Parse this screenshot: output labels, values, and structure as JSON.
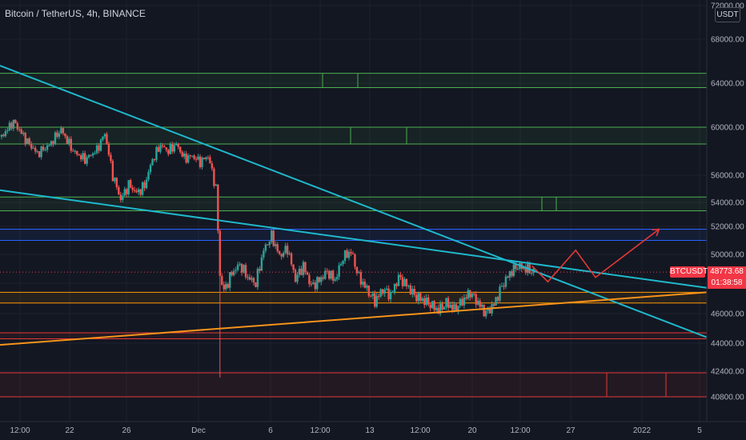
{
  "header": {
    "title": "Bitcoin / TetherUS, 4h, BINANCE"
  },
  "axis": {
    "unit": "USDT"
  },
  "price_tag": {
    "symbol": "BTCUSDT",
    "price": "48773.68",
    "countdown": "01:38:58"
  },
  "colors": {
    "background": "#131722",
    "up": "#26a69a",
    "down": "#ef5350",
    "trendline": "#1fb8cc",
    "support_line": "#f7931a",
    "green_zone": "#4caf50",
    "blue_zone": "#2962ff",
    "orange_zone": "#ff9800",
    "red_zone": "#e53935",
    "projection": "#e53935"
  },
  "chart_data": {
    "type": "candlestick",
    "title": "Bitcoin / TetherUS, 4h, BINANCE",
    "y_unit": "USDT",
    "y_ticks": [
      "72000.00",
      "68000.00",
      "64000.00",
      "60000.00",
      "56000.00",
      "54000.00",
      "52000.00",
      "50000.00",
      "48000.00",
      "46000.00",
      "44000.00",
      "42400.00",
      "40800.00"
    ],
    "x_ticks": [
      "12:00",
      "22",
      "26",
      "Dec",
      "6",
      "12:00",
      "13",
      "12:00",
      "20",
      "12:00",
      "27",
      "2022",
      "5"
    ],
    "last_price": 48773.68,
    "price_path": [
      [
        0,
        59200
      ],
      [
        3,
        60500
      ],
      [
        6,
        59000
      ],
      [
        9,
        57800
      ],
      [
        12,
        58500
      ],
      [
        15,
        59800
      ],
      [
        18,
        58000
      ],
      [
        21,
        57300
      ],
      [
        24,
        58100
      ],
      [
        26,
        59500
      ],
      [
        28,
        56000
      ],
      [
        30,
        54200
      ],
      [
        32,
        55300
      ],
      [
        34,
        54700
      ],
      [
        36,
        55200
      ],
      [
        38,
        57300
      ],
      [
        40,
        58500
      ],
      [
        42,
        58000
      ],
      [
        44,
        58600
      ],
      [
        46,
        57400
      ],
      [
        48,
        57600
      ],
      [
        50,
        57100
      ],
      [
        52,
        57600
      ],
      [
        54,
        55000
      ],
      [
        55,
        48500
      ],
      [
        56,
        47500
      ],
      [
        58,
        48700
      ],
      [
        60,
        49300
      ],
      [
        62,
        48400
      ],
      [
        64,
        48000
      ],
      [
        66,
        50300
      ],
      [
        68,
        51300
      ],
      [
        70,
        49900
      ],
      [
        72,
        50400
      ],
      [
        74,
        48300
      ],
      [
        76,
        49200
      ],
      [
        78,
        47800
      ],
      [
        80,
        48200
      ],
      [
        82,
        48800
      ],
      [
        84,
        48200
      ],
      [
        86,
        49800
      ],
      [
        88,
        50200
      ],
      [
        90,
        48400
      ],
      [
        92,
        47600
      ],
      [
        94,
        46800
      ],
      [
        96,
        47600
      ],
      [
        98,
        47200
      ],
      [
        100,
        48400
      ],
      [
        102,
        47900
      ],
      [
        104,
        47200
      ],
      [
        106,
        46900
      ],
      [
        108,
        46600
      ],
      [
        110,
        46200
      ],
      [
        112,
        46700
      ],
      [
        114,
        46300
      ],
      [
        116,
        46800
      ],
      [
        118,
        47400
      ],
      [
        120,
        46700
      ],
      [
        122,
        46000
      ],
      [
        124,
        46600
      ],
      [
        126,
        47800
      ],
      [
        128,
        48700
      ],
      [
        130,
        49200
      ],
      [
        132,
        49000
      ],
      [
        134,
        48770
      ]
    ],
    "wick_extremes": [
      {
        "x": 55,
        "low": 42000
      },
      {
        "x": 68,
        "high": 51800
      }
    ],
    "horizontal_zones": [
      {
        "color": "green",
        "top": 64900,
        "bottom": 63600
      },
      {
        "color": "green",
        "top": 60000,
        "bottom": 58600
      },
      {
        "color": "green",
        "top": 54400,
        "bottom": 53300
      },
      {
        "color": "blue",
        "top": 51800,
        "bottom": 51000
      },
      {
        "color": "orange",
        "top": 47400,
        "bottom": 46700
      },
      {
        "color": "red",
        "top": 44700,
        "bottom": 44300
      },
      {
        "color": "red",
        "top": 42300,
        "bottom": 40800
      }
    ],
    "trendlines": [
      {
        "color": "cyan",
        "from": [
          0,
          65600
        ],
        "to": [
          178,
          44400
        ]
      },
      {
        "color": "cyan",
        "from": [
          0,
          54900
        ],
        "to": [
          178,
          47700
        ]
      },
      {
        "color": "orange",
        "from": [
          0,
          43900
        ],
        "to": [
          178,
          47400
        ]
      }
    ],
    "projection": [
      [
        134,
        49200
      ],
      [
        138,
        48100
      ],
      [
        145,
        50300
      ],
      [
        150,
        48400
      ],
      [
        166,
        51800
      ]
    ],
    "y_range": [
      40000,
      72500
    ],
    "x_range": [
      0,
      178
    ]
  }
}
